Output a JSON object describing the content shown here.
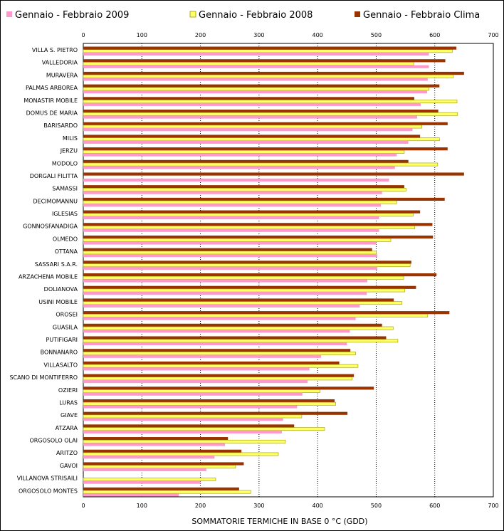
{
  "chart_data": {
    "type": "bar",
    "orientation": "horizontal",
    "xlabel": "SOMMATORIE TERMICHE IN BASE 0 °C (GDD)",
    "xlim": [
      0,
      700
    ],
    "xticks": [
      0,
      100,
      200,
      300,
      400,
      500,
      600,
      700
    ],
    "grid": true,
    "legend_position": "top",
    "categories": [
      "VILLA S. PIETRO",
      "VALLEDORIA",
      "MURAVERA",
      "PALMAS ARBOREA",
      "MONASTIR MOBILE",
      "DOMUS DE MARIA",
      "BARISARDO",
      "MILIS",
      "JERZU",
      "MODOLO",
      "DORGALI FILITTA",
      "SAMASSI",
      "DECIMOMANNU",
      "IGLESIAS",
      "GONNOSFANADIGA",
      "OLMEDO",
      "OTTANA",
      "SASSARI S.A.R.",
      "ARZACHENA MOBILE",
      "DOLIANOVA",
      "USINI MOBILE",
      "OROSEI",
      "GUASILA",
      "PUTIFIGARI",
      "BONNANARO",
      "VILLASALTO",
      "SCANO DI MONTIFERRO",
      "OZIERI",
      "LURAS",
      "GIAVE",
      "ATZARA",
      "ORGOSOLO OLAI",
      "ARITZO",
      "GAVOI",
      "VILLANOVA STRISAILI",
      "ORGOSOLO MONTES"
    ],
    "series": [
      {
        "name": "Gennaio - Febbraio Clima",
        "color": "#993300",
        "values": [
          637,
          618,
          650,
          608,
          565,
          606,
          622,
          575,
          622,
          555,
          650,
          548,
          617,
          575,
          596,
          597,
          493,
          560,
          603,
          568,
          530,
          625,
          510,
          517,
          456,
          437,
          462,
          496,
          429,
          451,
          360,
          247,
          270,
          274,
          0,
          266
        ]
      },
      {
        "name": "Gennaio - Febbraio 2008",
        "color": "#ffff66",
        "values": [
          630,
          564,
          632,
          590,
          638,
          639,
          578,
          608,
          548,
          605,
          0,
          551,
          535,
          563,
          566,
          525,
          500,
          558,
          547,
          549,
          544,
          588,
          529,
          537,
          465,
          469,
          459,
          404,
          431,
          373,
          412,
          345,
          333,
          260,
          226,
          286
        ]
      },
      {
        "name": "Gennaio - Febbraio 2009",
        "color": "#ff99cc",
        "values": [
          590,
          590,
          588,
          587,
          576,
          570,
          562,
          555,
          535,
          532,
          522,
          510,
          508,
          505,
          505,
          500,
          502,
          502,
          485,
          484,
          472,
          465,
          455,
          450,
          406,
          386,
          383,
          374,
          365,
          341,
          339,
          242,
          224,
          210,
          200,
          163
        ]
      }
    ],
    "legend": [
      {
        "label": "Gennaio - Febbraio 2009",
        "color": "#ff99cc"
      },
      {
        "label": "Gennaio - Febbraio 2008",
        "color": "#ffff66"
      },
      {
        "label": "Gennaio - Febbraio Clima",
        "color": "#993300"
      }
    ]
  }
}
